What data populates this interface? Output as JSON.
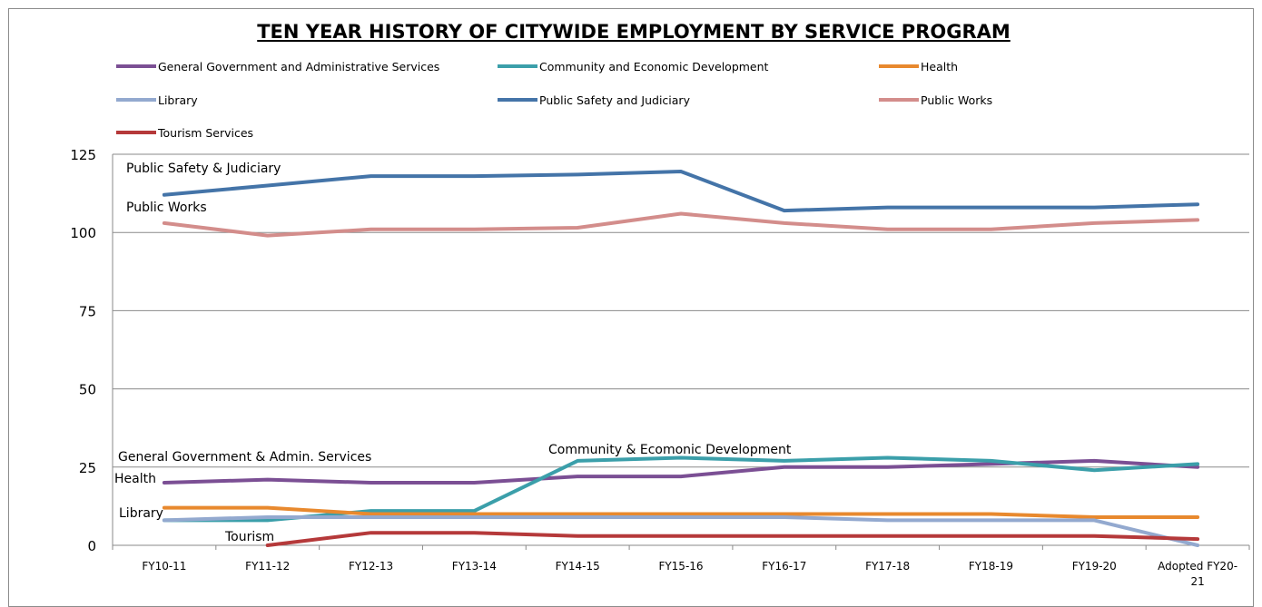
{
  "chart_data": {
    "type": "line",
    "title": "TEN YEAR HISTORY OF CITYWIDE EMPLOYMENT BY SERVICE PROGRAM",
    "xlabel": "",
    "ylabel": "",
    "categories": [
      "FY10-11",
      "FY11-12",
      "FY12-13",
      "FY13-14",
      "FY14-15",
      "FY15-16",
      "FY16-17",
      "FY17-18",
      "FY18-19",
      "FY19-20",
      "Adopted FY20-21"
    ],
    "ylim": [
      0,
      125
    ],
    "yticks": [
      "0",
      "25",
      "50",
      "75",
      "100",
      "125"
    ],
    "grid": "horizontal",
    "legend_position": "top",
    "series": [
      {
        "name": "General Government and Administrative Services",
        "color": "#7b4f94",
        "values": [
          20,
          21,
          20,
          20,
          22,
          22,
          25,
          25,
          26,
          27,
          25
        ]
      },
      {
        "name": "Community and Economic Development",
        "color": "#3b9faa",
        "values": [
          8,
          8,
          11,
          11,
          27,
          28,
          27,
          28,
          27,
          24,
          26
        ]
      },
      {
        "name": "Health",
        "color": "#e8892e",
        "values": [
          12,
          12,
          10,
          10,
          10,
          10,
          10,
          10,
          10,
          9,
          9
        ]
      },
      {
        "name": "Library",
        "color": "#93a9cf",
        "values": [
          8,
          9,
          9,
          9,
          9,
          9,
          9,
          8,
          8,
          8,
          0
        ]
      },
      {
        "name": "Public Safety and Judiciary",
        "color": "#4474a8",
        "values": [
          112,
          115,
          118,
          118,
          118.5,
          119.5,
          107,
          108,
          108,
          108,
          109
        ]
      },
      {
        "name": "Public Works",
        "color": "#d38d8b",
        "values": [
          103,
          99,
          101,
          101,
          101.5,
          106,
          103,
          101,
          101,
          103,
          104
        ]
      },
      {
        "name": "Tourism Services",
        "color": "#b5393a",
        "values": [
          null,
          0,
          4,
          4,
          3,
          3,
          3,
          3,
          3,
          3,
          2
        ]
      }
    ],
    "annotations": [
      "Public Safety & Judiciary",
      "Public Works",
      "General Government & Admin. Services",
      "Health",
      "Library",
      "Tourism",
      "Community & Ecomonic Development"
    ]
  }
}
